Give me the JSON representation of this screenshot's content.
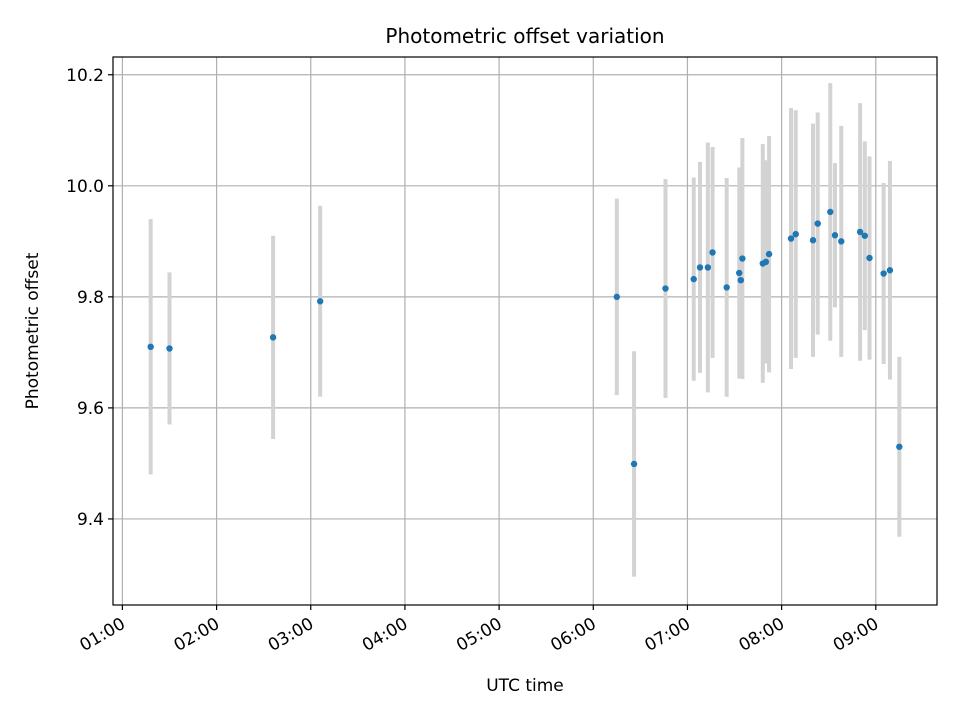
{
  "chart_data": {
    "type": "scatter",
    "title": "Photometric offset variation",
    "xlabel": "UTC time",
    "ylabel": "Photometric offset",
    "x_ticks": [
      "01:00",
      "02:00",
      "03:00",
      "04:00",
      "05:00",
      "06:00",
      "07:00",
      "08:00",
      "09:00"
    ],
    "y_ticks": [
      "9.4",
      "9.6",
      "9.8",
      "10.0",
      "10.2"
    ],
    "xlim": [
      "00:54",
      "09:39"
    ],
    "ylim": [
      9.245,
      10.232
    ],
    "grid": true,
    "colors": {
      "point": "#1f77b4",
      "errorbar": "#d3d3d3",
      "grid": "#b0b0b0"
    },
    "series": [
      {
        "points": [
          {
            "x": "01:18",
            "y": 9.71,
            "err": 0.23
          },
          {
            "x": "01:30",
            "y": 9.707,
            "err": 0.137
          },
          {
            "x": "02:36",
            "y": 9.727,
            "err": 0.183
          },
          {
            "x": "03:06",
            "y": 9.792,
            "err": 0.172
          },
          {
            "x": "06:15",
            "y": 9.8,
            "err": 0.177
          },
          {
            "x": "06:26",
            "y": 9.499,
            "err": 0.203
          },
          {
            "x": "06:46",
            "y": 9.815,
            "err": 0.197
          },
          {
            "x": "07:04",
            "y": 9.832,
            "err": 0.183
          },
          {
            "x": "07:08",
            "y": 9.853,
            "err": 0.19
          },
          {
            "x": "07:13",
            "y": 9.853,
            "err": 0.225
          },
          {
            "x": "07:16",
            "y": 9.88,
            "err": 0.19
          },
          {
            "x": "07:25",
            "y": 9.817,
            "err": 0.197
          },
          {
            "x": "07:33",
            "y": 9.843,
            "err": 0.19
          },
          {
            "x": "07:34",
            "y": 9.83,
            "err": 0.177
          },
          {
            "x": "07:35",
            "y": 9.869,
            "err": 0.217
          },
          {
            "x": "07:48",
            "y": 9.86,
            "err": 0.215
          },
          {
            "x": "07:50",
            "y": 9.863,
            "err": 0.183
          },
          {
            "x": "07:52",
            "y": 9.877,
            "err": 0.213
          },
          {
            "x": "08:06",
            "y": 9.905,
            "err": 0.235
          },
          {
            "x": "08:09",
            "y": 9.913,
            "err": 0.223
          },
          {
            "x": "08:20",
            "y": 9.902,
            "err": 0.21
          },
          {
            "x": "08:23",
            "y": 9.932,
            "err": 0.2
          },
          {
            "x": "08:31",
            "y": 9.953,
            "err": 0.232
          },
          {
            "x": "08:34",
            "y": 9.911,
            "err": 0.13
          },
          {
            "x": "08:38",
            "y": 9.9,
            "err": 0.208
          },
          {
            "x": "08:50",
            "y": 9.917,
            "err": 0.232
          },
          {
            "x": "08:53",
            "y": 9.91,
            "err": 0.17
          },
          {
            "x": "08:56",
            "y": 9.87,
            "err": 0.183
          },
          {
            "x": "09:05",
            "y": 9.842,
            "err": 0.163
          },
          {
            "x": "09:09",
            "y": 9.848,
            "err": 0.197
          },
          {
            "x": "09:15",
            "y": 9.53,
            "err": 0.162
          }
        ]
      }
    ]
  }
}
